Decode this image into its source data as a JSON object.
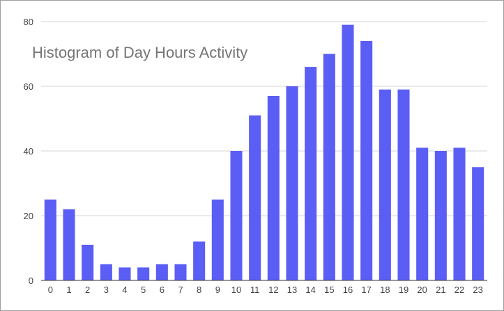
{
  "chart_data": {
    "type": "bar",
    "title": "Histogram of Day Hours Activity",
    "categories": [
      "0",
      "1",
      "2",
      "3",
      "4",
      "5",
      "6",
      "7",
      "8",
      "9",
      "10",
      "11",
      "12",
      "13",
      "14",
      "15",
      "16",
      "17",
      "18",
      "19",
      "20",
      "21",
      "22",
      "23"
    ],
    "values": [
      25,
      22,
      11,
      5,
      4,
      4,
      5,
      5,
      12,
      25,
      40,
      51,
      57,
      60,
      66,
      70,
      79,
      74,
      59,
      59,
      41,
      40,
      41,
      35
    ],
    "y_ticks": [
      "0",
      "20",
      "40",
      "60",
      "80"
    ],
    "ylim": [
      0,
      80
    ],
    "grid": true,
    "legend": "none",
    "colors": {
      "bar": "#5b5ef5",
      "grid": "#d6d6d6",
      "axis": "#333333",
      "title": "#757575",
      "tick": "#444444"
    }
  }
}
